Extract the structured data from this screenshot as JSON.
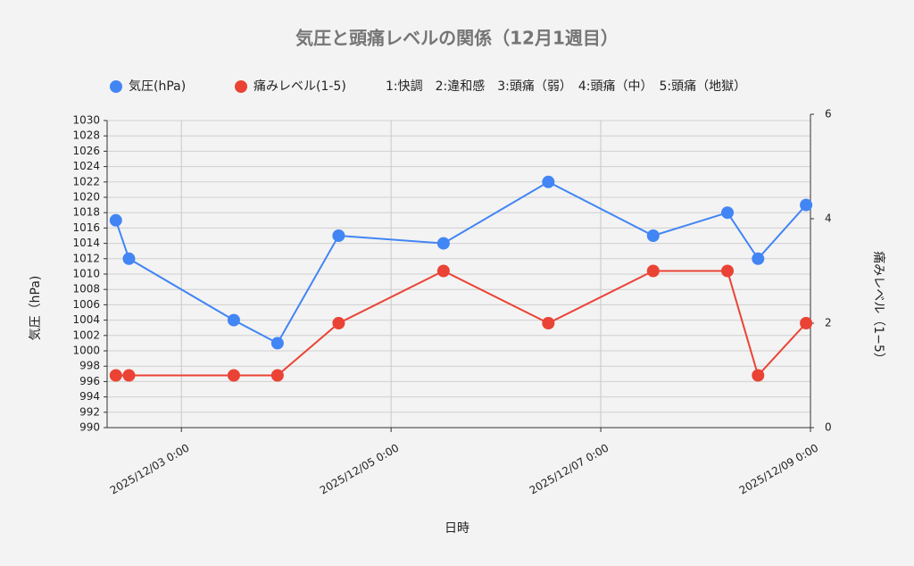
{
  "chart_data": {
    "type": "line",
    "title": "気圧と頭痛レベルの関係（12月1週目）",
    "legend_note": "1:快調　2:違和感　3:頭痛（弱）　4:頭痛（中）　5:頭痛（地獄）",
    "x_label": "日時",
    "y_label": "気圧（hPa)",
    "y2_label": "痛みレベル（1−5）",
    "x": [
      "2025/12/02 9:00",
      "2025/12/02 12:00",
      "2025/12/03 12:00",
      "2025/12/03 22:00",
      "2025/12/04 12:00",
      "2025/12/05 12:00",
      "2025/12/06 12:00",
      "2025/12/07 12:00",
      "2025/12/08 5:00",
      "2025/12/08 12:00",
      "2025/12/08 23:00"
    ],
    "series": [
      {
        "name": "気圧(hPa)",
        "color": "#4285f4",
        "values": [
          1017,
          1012,
          1004,
          1001,
          1015,
          1014,
          1022,
          1015,
          1018,
          1012,
          1019
        ]
      },
      {
        "name": "痛みレベル(1-5)",
        "color": "#ea4335",
        "axis": "y2",
        "values": [
          1,
          1,
          1,
          1,
          2,
          3,
          2,
          3,
          3,
          1,
          2
        ]
      }
    ],
    "xlim": [
      "2025/12/02 7:00",
      "2025/12/09 0:00"
    ],
    "xticks": [
      "2025/12/03 0:00",
      "2025/12/05 0:00",
      "2025/12/07 0:00",
      "2025/12/09 0:00"
    ],
    "ylim": [
      990,
      1030
    ],
    "yticks": [
      990,
      992,
      994,
      996,
      998,
      1000,
      1002,
      1004,
      1006,
      1008,
      1010,
      1012,
      1014,
      1016,
      1018,
      1020,
      1022,
      1024,
      1026,
      1028,
      1030
    ],
    "y2lim": [
      0,
      6
    ],
    "y2ticks": [
      0,
      2,
      4,
      6
    ],
    "grid": true
  }
}
